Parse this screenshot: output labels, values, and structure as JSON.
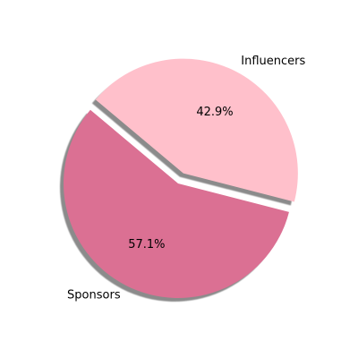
{
  "chart_data": {
    "type": "pie",
    "title": "",
    "slices": [
      {
        "label": "Sponsors",
        "value": 57.1,
        "display": "57.1%",
        "color": "#DB7093",
        "exploded": false
      },
      {
        "label": "Influencers",
        "value": 42.9,
        "display": "42.9%",
        "color": "#FFC0CB",
        "exploded": true
      }
    ],
    "shadow": true
  }
}
